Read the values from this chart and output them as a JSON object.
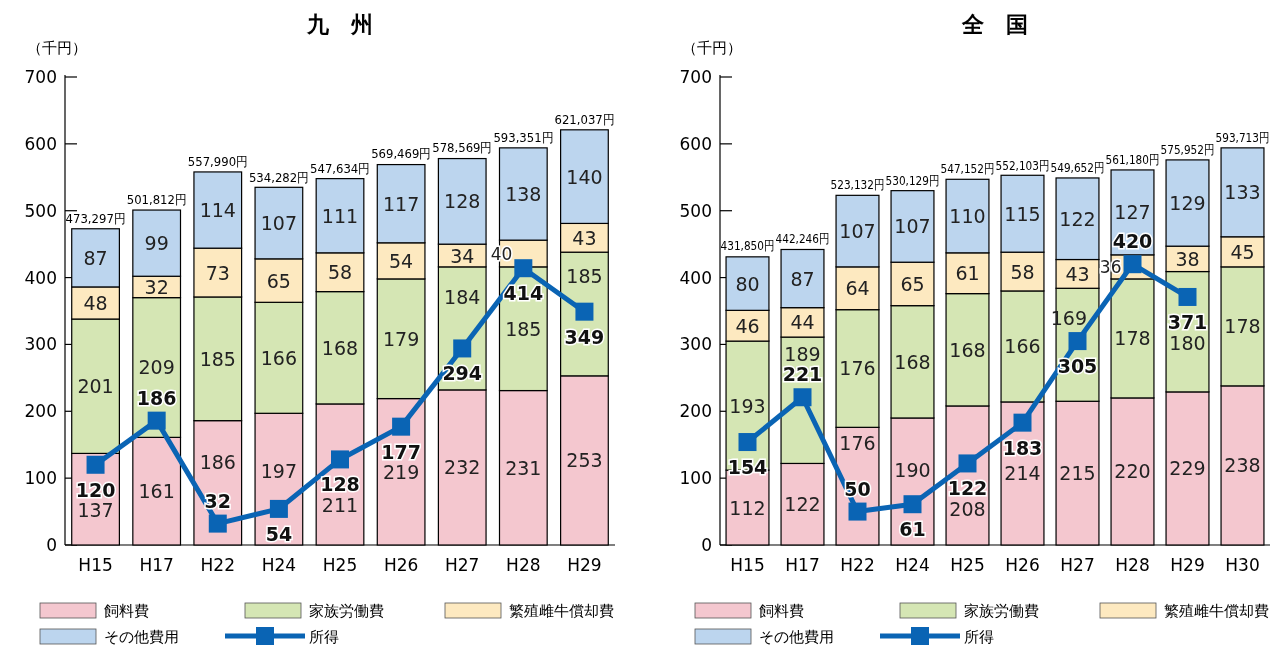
{
  "chart_data": [
    {
      "type": "bar",
      "title": "九　州",
      "ylabel": "（千円）",
      "stacked": true,
      "data_labels": true,
      "legend": "bottom",
      "grid": false,
      "marker": "square",
      "categories": [
        "H15",
        "H17",
        "H22",
        "H24",
        "H25",
        "H26",
        "H27",
        "H28",
        "H29"
      ],
      "ylim": [
        0,
        700
      ],
      "yticks": [
        0,
        100,
        200,
        300,
        400,
        500,
        600,
        700
      ],
      "annotations": [
        {
          "text": "473,297円",
          "x": "H15",
          "y": 473.297
        },
        {
          "text": "501,812円",
          "x": "H17",
          "y": 501.812
        },
        {
          "text": "557,990円",
          "x": "H22",
          "y": 557.99
        },
        {
          "text": "534,282円",
          "x": "H24",
          "y": 534.282
        },
        {
          "text": "547,634円",
          "x": "H25",
          "y": 547.634
        },
        {
          "text": "569,469円",
          "x": "H26",
          "y": 569.469
        },
        {
          "text": "578,569円",
          "x": "H27",
          "y": 578.569
        },
        {
          "text": "593,351円",
          "x": "H28",
          "y": 593.351
        },
        {
          "text": "621,037円",
          "x": "H29",
          "y": 621.037
        }
      ],
      "series": [
        {
          "name": "飼料費",
          "color": "#f4c7cf",
          "values": [
            137,
            161,
            186,
            197,
            211,
            219,
            232,
            231,
            253
          ]
        },
        {
          "name": "家族労働費",
          "color": "#d5e6b4",
          "values": [
            201,
            209,
            185,
            166,
            168,
            179,
            184,
            185,
            185
          ]
        },
        {
          "name": "繁殖雌牛償却費",
          "color": "#fde9c0",
          "values": [
            48,
            32,
            73,
            65,
            58,
            54,
            34,
            40,
            43
          ]
        },
        {
          "name": "その他費用",
          "color": "#bcd5ee",
          "values": [
            87,
            99,
            114,
            107,
            111,
            117,
            128,
            138,
            140
          ]
        },
        {
          "name": "所得",
          "type": "line",
          "color": "#0a64b4",
          "values": [
            120,
            186,
            32,
            54,
            128,
            177,
            294,
            414,
            349
          ]
        }
      ]
    },
    {
      "type": "bar",
      "title": "全　国",
      "ylabel": "（千円）",
      "stacked": true,
      "data_labels": true,
      "legend": "bottom",
      "grid": false,
      "marker": "square",
      "categories": [
        "H15",
        "H17",
        "H22",
        "H24",
        "H25",
        "H26",
        "H27",
        "H28",
        "H29",
        "H30"
      ],
      "ylim": [
        0,
        700
      ],
      "yticks": [
        0,
        100,
        200,
        300,
        400,
        500,
        600,
        700
      ],
      "annotations": [
        {
          "text": "431,850円",
          "x": "H15",
          "y": 431.85
        },
        {
          "text": "442,246円",
          "x": "H17",
          "y": 442.246
        },
        {
          "text": "523,132円",
          "x": "H22",
          "y": 523.132
        },
        {
          "text": "530,129円",
          "x": "H24",
          "y": 530.129
        },
        {
          "text": "547,152円",
          "x": "H25",
          "y": 547.152
        },
        {
          "text": "552,103円",
          "x": "H26",
          "y": 552.103
        },
        {
          "text": "549,652円",
          "x": "H27",
          "y": 549.652
        },
        {
          "text": "561,180円",
          "x": "H28",
          "y": 561.18
        },
        {
          "text": "575,952円",
          "x": "H29",
          "y": 575.952
        },
        {
          "text": "593,713円",
          "x": "H30",
          "y": 593.713
        }
      ],
      "series": [
        {
          "name": "飼料費",
          "color": "#f4c7cf",
          "values": [
            112,
            122,
            176,
            190,
            208,
            214,
            215,
            220,
            229,
            238
          ]
        },
        {
          "name": "家族労働費",
          "color": "#d5e6b4",
          "values": [
            193,
            189,
            176,
            168,
            168,
            166,
            169,
            178,
            180,
            178
          ]
        },
        {
          "name": "繁殖雌牛償却費",
          "color": "#fde9c0",
          "values": [
            46,
            44,
            64,
            65,
            61,
            58,
            43,
            36,
            38,
            45
          ]
        },
        {
          "name": "その他費用",
          "color": "#bcd5ee",
          "values": [
            80,
            87,
            107,
            107,
            110,
            115,
            122,
            127,
            129,
            133
          ]
        },
        {
          "name": "所得",
          "type": "line",
          "color": "#0a64b4",
          "values": [
            154,
            221,
            50,
            61,
            122,
            183,
            305,
            420,
            371,
            null
          ]
        }
      ]
    }
  ]
}
